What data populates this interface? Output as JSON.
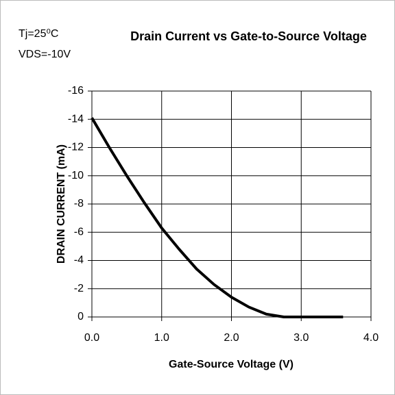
{
  "chart_data": {
    "type": "line",
    "title": "Drain Current vs Gate-to-Source Voltage",
    "annotations": [
      "Tj=25⁰C",
      "VDS=-10V"
    ],
    "x_label": "Gate-Source Voltage (V)",
    "y_label": "DRAIN CURRENT (mA)",
    "x": [
      0,
      0.25,
      0.5,
      0.75,
      1.0,
      1.25,
      1.5,
      1.75,
      2.0,
      2.25,
      2.5,
      2.75,
      3.0,
      3.3,
      3.6
    ],
    "series": [
      {
        "name": "Drain Current",
        "color": "#000000",
        "values": [
          -14.1,
          -12.0,
          -10.0,
          -8.1,
          -6.3,
          -4.8,
          -3.4,
          -2.3,
          -1.4,
          -0.7,
          -0.2,
          0,
          0,
          0,
          0
        ]
      }
    ],
    "xlim": [
      0,
      4
    ],
    "xticks": [
      {
        "value": 0,
        "label": "0.0"
      },
      {
        "value": 1,
        "label": "1.0"
      },
      {
        "value": 2,
        "label": "2.0"
      },
      {
        "value": 3,
        "label": "3.0"
      },
      {
        "value": 4,
        "label": "4.0"
      }
    ],
    "ylim": [
      0,
      -16
    ],
    "yticks": [
      0,
      -2,
      -4,
      -6,
      -8,
      -10,
      -12,
      -14,
      -16
    ],
    "grid": true
  }
}
